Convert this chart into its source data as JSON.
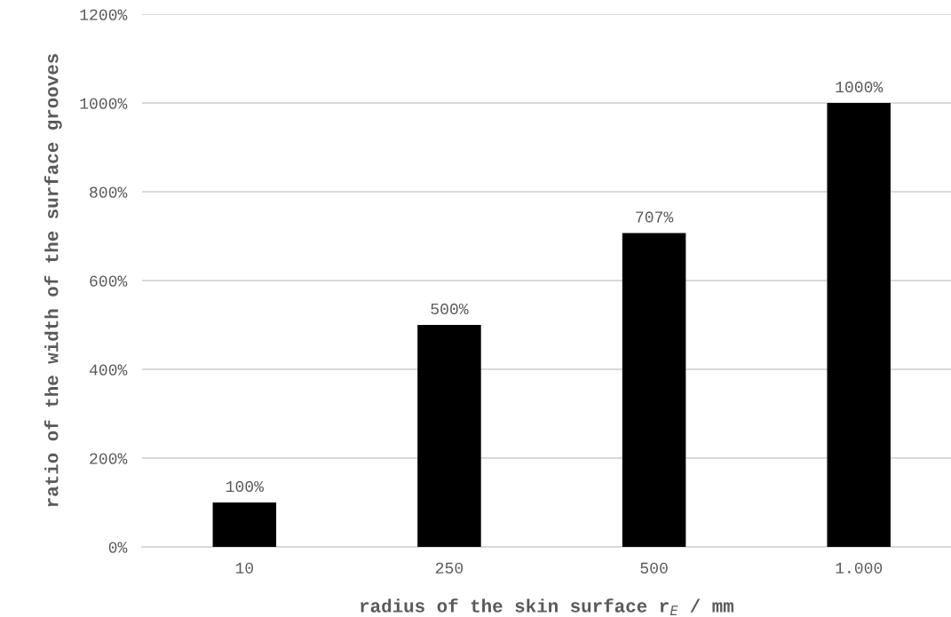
{
  "chart_data": {
    "type": "bar",
    "categories": [
      "10",
      "250",
      "500",
      "1.000"
    ],
    "values": [
      100,
      500,
      707,
      1000
    ],
    "value_labels": [
      "100%",
      "500%",
      "707%",
      "1000%"
    ],
    "color": "#000000",
    "xlabel": "radius of the skin surface r$_{E}$ / mm",
    "ylabel": "ratio of the width of the surface grooves",
    "ylim": [
      0,
      1200
    ],
    "yticks": [
      {
        "value": 0,
        "label": "0%"
      },
      {
        "value": 200,
        "label": "200%"
      },
      {
        "value": 400,
        "label": "400%"
      },
      {
        "value": 600,
        "label": "600%"
      },
      {
        "value": 800,
        "label": "800%"
      },
      {
        "value": 1000,
        "label": "1000%"
      },
      {
        "value": 1200,
        "label": "1200%"
      }
    ],
    "grid": "y",
    "legend": false
  }
}
